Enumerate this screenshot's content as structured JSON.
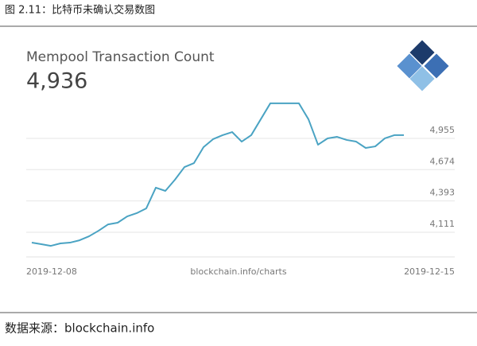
{
  "chart_data": {
    "type": "line",
    "figure_title": "图 2.11：比特币未确认交易数图",
    "title": "Mempool Transaction Count",
    "subtitle": "4,936",
    "annotation": "blockchain.info/charts",
    "source": "数据来源：blockchain.info",
    "categories": [
      "2019-12-08",
      null,
      null,
      null,
      null,
      null,
      null,
      null,
      null,
      null,
      null,
      null,
      null,
      null,
      null,
      null,
      null,
      null,
      null,
      null,
      null,
      null,
      null,
      null,
      null,
      null,
      null,
      null,
      null,
      null,
      null,
      null,
      null,
      null,
      null,
      null,
      null,
      null,
      null,
      "2019-12-15"
    ],
    "series": [
      {
        "name": "Mempool Transaction Count",
        "color": "#4aa3c3",
        "values": [
          4018,
          4004,
          3989,
          4011,
          4018,
          4039,
          4075,
          4125,
          4182,
          4197,
          4254,
          4283,
          4326,
          4512,
          4483,
          4583,
          4697,
          4733,
          4876,
          4948,
          4984,
          5012,
          4926,
          4984,
          5127,
          5270,
          5270,
          5270,
          5270,
          5127,
          4898,
          4955,
          4969,
          4941,
          4926,
          4869,
          4883,
          4955,
          4984,
          4984
        ]
      }
    ],
    "ylim": [
      3911,
      5341
    ],
    "yticks": [
      {
        "value": 4111,
        "label": "4,111"
      },
      {
        "value": 4393,
        "label": "4,393"
      },
      {
        "value": 4674,
        "label": "4,674"
      },
      {
        "value": 4955,
        "label": "4,955"
      }
    ],
    "grid": true
  }
}
